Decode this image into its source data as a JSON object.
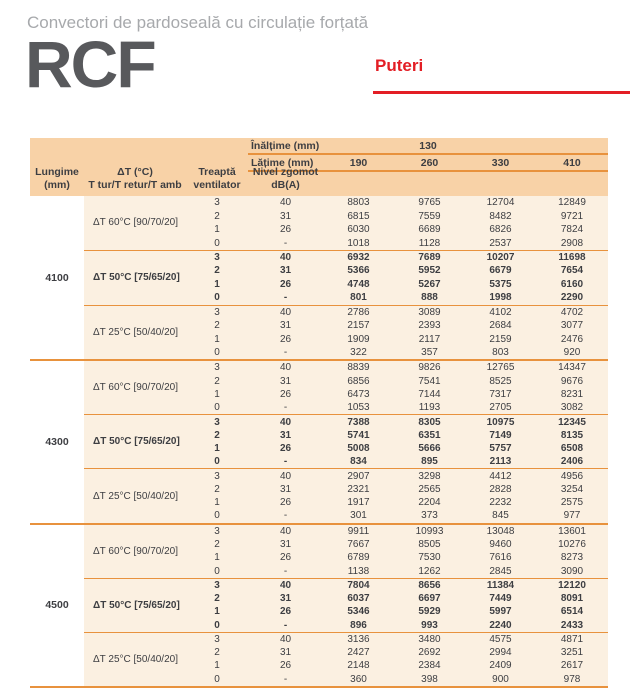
{
  "page": {
    "subtitle": "Convectori de pardoseală cu circulație forțată",
    "product_code": "RCF",
    "section_label": "Puteri"
  },
  "colors": {
    "accent_red": "#e31e25",
    "header_peach": "#f8d2a7",
    "body_cream": "#fbf0e1",
    "line_orange": "#e8923d",
    "text_dark": "#3d3e42",
    "subtitle_gray": "#a7a9ac",
    "logo_gray": "#58595c"
  },
  "table": {
    "height_label": "Înălțime (mm)",
    "height_value": "130",
    "width_label": "Lățime (mm)",
    "width_values": [
      "190",
      "260",
      "330",
      "410"
    ],
    "col_headers": {
      "length_line1": "Lungime",
      "length_line2": "(mm)",
      "delta_t_line1": "ΔT (°C)",
      "delta_t_line2": "T tur/T retur/T amb",
      "fan_line1": "Treaptă",
      "fan_line2": "ventilator",
      "noise_line1": "Nivel zgomot",
      "noise_line2": "dB(A)"
    },
    "fan_steps": [
      "3",
      "2",
      "1",
      "0"
    ],
    "noise_levels": [
      "40",
      "31",
      "26",
      "-"
    ],
    "length_blocks": [
      {
        "length": "4100",
        "groups": [
          {
            "label": "ΔT 60°C [90/70/20]",
            "bold": false,
            "rows": [
              [
                8803,
                9765,
                12704,
                12849
              ],
              [
                6815,
                7559,
                8482,
                9721
              ],
              [
                6030,
                6689,
                6826,
                7824
              ],
              [
                1018,
                1128,
                2537,
                2908
              ]
            ]
          },
          {
            "label": "ΔT 50°C [75/65/20]",
            "bold": true,
            "rows": [
              [
                6932,
                7689,
                10207,
                11698
              ],
              [
                5366,
                5952,
                6679,
                7654
              ],
              [
                4748,
                5267,
                5375,
                6160
              ],
              [
                801,
                888,
                1998,
                2290
              ]
            ]
          },
          {
            "label": "ΔT 25°C [50/40/20]",
            "bold": false,
            "rows": [
              [
                2786,
                3089,
                4102,
                4702
              ],
              [
                2157,
                2393,
                2684,
                3077
              ],
              [
                1909,
                2117,
                2159,
                2476
              ],
              [
                322,
                357,
                803,
                920
              ]
            ]
          }
        ]
      },
      {
        "length": "4300",
        "groups": [
          {
            "label": "ΔT 60°C [90/70/20]",
            "bold": false,
            "rows": [
              [
                8839,
                9826,
                12765,
                14347
              ],
              [
                6856,
                7541,
                8525,
                9676
              ],
              [
                6473,
                7144,
                7317,
                8231
              ],
              [
                1053,
                1193,
                2705,
                3082
              ]
            ]
          },
          {
            "label": "ΔT 50°C [75/65/20]",
            "bold": true,
            "rows": [
              [
                7388,
                8305,
                10975,
                12345
              ],
              [
                5741,
                6351,
                7149,
                8135
              ],
              [
                5008,
                5666,
                5757,
                6508
              ],
              [
                834,
                895,
                2113,
                2406
              ]
            ]
          },
          {
            "label": "ΔT 25°C [50/40/20]",
            "bold": false,
            "rows": [
              [
                2907,
                3298,
                4412,
                4956
              ],
              [
                2321,
                2565,
                2828,
                3254
              ],
              [
                1917,
                2204,
                2232,
                2575
              ],
              [
                301,
                373,
                845,
                977
              ]
            ]
          }
        ]
      },
      {
        "length": "4500",
        "groups": [
          {
            "label": "ΔT 60°C [90/70/20]",
            "bold": false,
            "rows": [
              [
                9911,
                10993,
                13048,
                13601
              ],
              [
                7667,
                8505,
                9460,
                10276
              ],
              [
                6789,
                7530,
                7616,
                8273
              ],
              [
                1138,
                1262,
                2845,
                3090
              ]
            ]
          },
          {
            "label": "ΔT 50°C [75/65/20]",
            "bold": true,
            "rows": [
              [
                7804,
                8656,
                11384,
                12120
              ],
              [
                6037,
                6697,
                7449,
                8091
              ],
              [
                5346,
                5929,
                5997,
                6514
              ],
              [
                896,
                993,
                2240,
                2433
              ]
            ]
          },
          {
            "label": "ΔT 25°C [50/40/20]",
            "bold": false,
            "rows": [
              [
                3136,
                3480,
                4575,
                4871
              ],
              [
                2427,
                2692,
                2994,
                3251
              ],
              [
                2148,
                2384,
                2409,
                2617
              ],
              [
                360,
                398,
                900,
                978
              ]
            ]
          }
        ]
      }
    ]
  }
}
